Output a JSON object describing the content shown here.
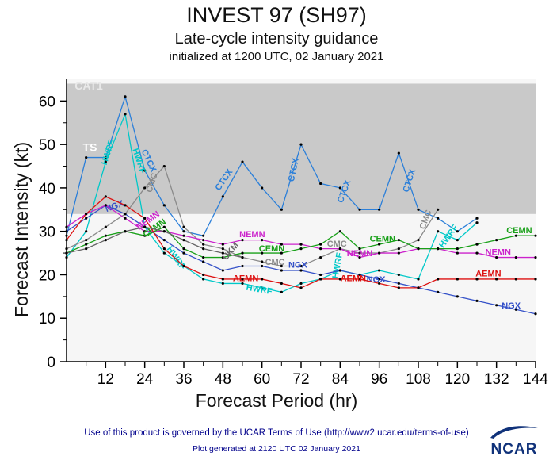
{
  "chart_data": {
    "type": "line",
    "title": "INVEST 97 (SH97)",
    "subtitle": "Late-cycle intensity guidance",
    "init_line": "initialized at 1200 UTC, 02 January 2021",
    "xlabel": "Forecast Period (hr)",
    "ylabel": "Forecast Intensity (kt)",
    "xlim": [
      0,
      144
    ],
    "ylim": [
      0,
      65
    ],
    "xticks": [
      12,
      24,
      36,
      48,
      60,
      72,
      84,
      96,
      108,
      120,
      132,
      144
    ],
    "xticks_minor_step": 6,
    "yticks": [
      0,
      10,
      20,
      30,
      40,
      50,
      60
    ],
    "yticks_minor_step": 5,
    "grid": false,
    "legend": "labels-on-lines",
    "band": {
      "from": 34,
      "to": 64,
      "color": "#c9c9c9"
    },
    "region_labels": [
      {
        "text": "CAT1",
        "x": 2.5,
        "y": 62.6,
        "color": "#e9e9e9",
        "size": 14
      },
      {
        "text": "TS",
        "x": 5.0,
        "y": 48.5,
        "color": "#ffffff",
        "size": 14
      }
    ],
    "series": [
      {
        "name": "CTCX",
        "color": "#2b7fd9",
        "x": [
          0,
          6,
          12,
          18,
          24,
          30,
          36,
          42,
          48,
          54,
          60,
          66,
          72,
          78,
          84,
          90,
          96,
          102,
          108,
          114,
          120,
          126
        ],
        "v": [
          29,
          47,
          47,
          61,
          44,
          36,
          30,
          29,
          38,
          46,
          40,
          35,
          50,
          41,
          40,
          35,
          35,
          48,
          35,
          33,
          30,
          33
        ],
        "labels": [
          {
            "x": 24.5,
            "y": 46,
            "r": 65
          },
          {
            "x": 49,
            "y": 41.5,
            "r": -55
          },
          {
            "x": 70.5,
            "y": 44,
            "r": -78
          },
          {
            "x": 86,
            "y": 39,
            "r": -70
          },
          {
            "x": 106,
            "y": 41.5,
            "r": -72
          }
        ]
      },
      {
        "name": "HWRF",
        "color": "#00c8c8",
        "x": [
          0,
          6,
          12,
          18,
          24,
          30,
          36,
          42,
          48,
          54,
          60,
          66,
          72,
          78,
          84,
          90,
          96,
          102,
          108,
          114,
          120,
          126
        ],
        "v": [
          24,
          30,
          46,
          57,
          31,
          25,
          22,
          19,
          18,
          18,
          17,
          16,
          18,
          19,
          21,
          20,
          21,
          20,
          19,
          30,
          28,
          32
        ],
        "labels": [
          {
            "x": 13.5,
            "y": 48,
            "r": -72
          },
          {
            "x": 21.5,
            "y": 46,
            "r": 72
          },
          {
            "x": 33,
            "y": 23.5,
            "r": 55
          },
          {
            "x": 59,
            "y": 16,
            "r": 10
          },
          {
            "x": 84,
            "y": 22,
            "r": -80
          },
          {
            "x": 118,
            "y": 28.5,
            "r": -55
          }
        ]
      },
      {
        "name": "CMC",
        "color": "#8a8a8a",
        "x": [
          0,
          6,
          12,
          18,
          24,
          30,
          36,
          42,
          48,
          54,
          60,
          66,
          72,
          78,
          84,
          90,
          96,
          102,
          108,
          114
        ],
        "v": [
          26,
          28,
          31,
          34,
          40,
          45,
          31,
          27,
          26,
          24,
          23,
          22,
          22,
          24,
          26,
          25,
          25,
          26,
          28,
          35
        ],
        "labels": [
          {
            "x": 27,
            "y": 41,
            "r": -72
          },
          {
            "x": 64,
            "y": 22.3,
            "r": 0
          },
          {
            "x": 83,
            "y": 26.5,
            "r": 0
          },
          {
            "x": 111,
            "y": 32.5,
            "r": -70
          }
        ]
      },
      {
        "name": "NGX",
        "color": "#3350c8",
        "x": [
          0,
          6,
          12,
          18,
          24,
          30,
          36,
          42,
          48,
          54,
          60,
          66,
          72,
          78,
          84,
          90,
          96,
          102,
          108,
          114,
          120,
          126,
          132,
          138,
          144
        ],
        "v": [
          30,
          33,
          36,
          34,
          31,
          28,
          25,
          23,
          21,
          22,
          22,
          21,
          21,
          20,
          21,
          20,
          19,
          18,
          17,
          16,
          15,
          14,
          13,
          12,
          11
        ],
        "labels": [
          {
            "x": 15,
            "y": 35.2,
            "r": -20
          },
          {
            "x": 71,
            "y": 21.6,
            "r": 0
          },
          {
            "x": 95,
            "y": 18.3,
            "r": 0
          },
          {
            "x": 136.5,
            "y": 12.2,
            "r": 0
          }
        ]
      },
      {
        "name": "NEMN",
        "color": "#cc22cc",
        "x": [
          0,
          6,
          12,
          18,
          24,
          30,
          36,
          42,
          48,
          54,
          60,
          66,
          72,
          78,
          84,
          90,
          96,
          102,
          108,
          114,
          120,
          126,
          132,
          138,
          144
        ],
        "v": [
          31,
          34,
          36,
          33,
          30,
          30,
          29,
          28,
          27,
          28,
          28,
          27,
          27,
          26,
          26,
          24,
          25,
          25,
          26,
          26,
          25,
          25,
          24,
          24,
          24
        ],
        "labels": [
          {
            "x": 25.5,
            "y": 32,
            "r": -35
          },
          {
            "x": 57,
            "y": 28.7,
            "r": 0
          },
          {
            "x": 90,
            "y": 24.3,
            "r": 0
          },
          {
            "x": 132.5,
            "y": 24.6,
            "r": 0
          }
        ]
      },
      {
        "name": "CEMN",
        "color": "#18a018",
        "x": [
          0,
          6,
          12,
          18,
          24,
          30,
          36,
          42,
          48,
          54,
          60,
          66,
          72,
          78,
          84,
          90,
          96,
          102,
          108,
          114,
          120,
          126,
          132,
          138,
          144
        ],
        "v": [
          25,
          27,
          29,
          30,
          29,
          31,
          26,
          24,
          24,
          25,
          25,
          25,
          26,
          27,
          30,
          26,
          27,
          28,
          26,
          26,
          26,
          27,
          28,
          29,
          29
        ],
        "labels": [
          {
            "x": 27.5,
            "y": 30.2,
            "r": -35
          },
          {
            "x": 63,
            "y": 25.4,
            "r": 0
          },
          {
            "x": 97,
            "y": 27.7,
            "r": 0
          },
          {
            "x": 139,
            "y": 29.6,
            "r": 0
          }
        ]
      },
      {
        "name": "AEMN",
        "color": "#dd1111",
        "x": [
          0,
          6,
          12,
          18,
          24,
          30,
          36,
          42,
          48,
          54,
          60,
          66,
          72,
          78,
          84,
          90,
          96,
          102,
          108,
          114,
          120,
          126,
          132,
          138,
          144
        ],
        "v": [
          28,
          34,
          38,
          36,
          33,
          26,
          22,
          20,
          19,
          19,
          19,
          18,
          17,
          19,
          19,
          19,
          18,
          17,
          17,
          19,
          19,
          19,
          19,
          19,
          19
        ],
        "labels": [
          {
            "x": 55,
            "y": 18.5,
            "r": 0
          },
          {
            "x": 88,
            "y": 18.5,
            "r": 0
          },
          {
            "x": 129.5,
            "y": 19.6,
            "r": 0
          }
        ]
      },
      {
        "name": "UKM",
        "color": "#666666",
        "x": [
          0,
          6,
          12,
          18,
          24,
          30,
          36,
          42,
          48,
          54
        ],
        "v": [
          25,
          26,
          28,
          30,
          31,
          30,
          28,
          26,
          25,
          24
        ],
        "labels": [
          {
            "x": 51,
            "y": 25,
            "r": -50
          }
        ]
      }
    ]
  },
  "footer": {
    "terms": "Use of this product is governed by the UCAR Terms of Use (http://www2.ucar.edu/terms-of-use)",
    "generated": "Plot generated at 2120 UTC   02 January 2021",
    "logo_text": "NCAR"
  }
}
